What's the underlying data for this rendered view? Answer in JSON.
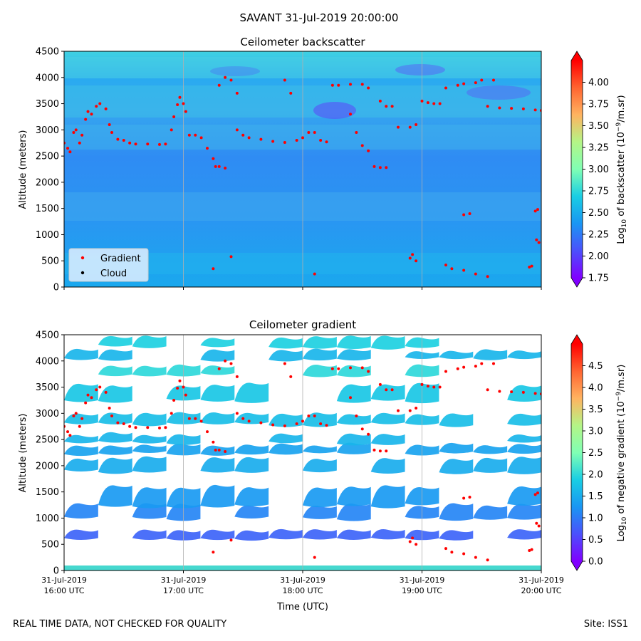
{
  "figure": {
    "suptitle": "SAVANT 31-Jul-2019 20:00:00",
    "footer_left": "REAL TIME DATA, NOT CHECKED FOR QUALITY",
    "footer_right": "Site: ISS1"
  },
  "chart_data": [
    {
      "type": "heatmap",
      "title": "Ceilometer backscatter",
      "xlabel": "",
      "ylabel": "Altitude (meters)",
      "ylim": [
        0,
        4500
      ],
      "yticks": [
        0,
        500,
        1000,
        1500,
        2000,
        2500,
        3000,
        3500,
        4000,
        4500
      ],
      "ytick_labels": [
        "0",
        "500",
        "1000",
        "1500",
        "2000",
        "2500",
        "3000",
        "3500",
        "4000",
        "4500"
      ],
      "x_hours": [
        16,
        17,
        18,
        19,
        20
      ],
      "grid": "vertical",
      "colorbar": {
        "label": "Log10 of backscatter (10^-9/m.sr)",
        "label_parts": [
          "Log",
          "10",
          " of backscatter (10",
          "−9",
          "/m.sr)"
        ],
        "range": [
          1.75,
          4.25
        ],
        "ticks": [
          "1.75",
          "2.00",
          "2.25",
          "2.50",
          "2.75",
          "3.00",
          "3.25",
          "3.50",
          "3.75",
          "4.00"
        ],
        "colormap": "rainbow"
      },
      "legend": {
        "location": "lower-left",
        "entries": [
          {
            "label": "Gradient",
            "color": "#ff0000"
          },
          {
            "label": "Cloud",
            "color": "#000000"
          }
        ]
      },
      "series": [
        {
          "name": "Gradient",
          "color": "#ff0000",
          "points": [
            [
              16.0,
              2750
            ],
            [
              16.03,
              2650
            ],
            [
              16.05,
              2580
            ],
            [
              16.08,
              2950
            ],
            [
              16.1,
              3000
            ],
            [
              16.13,
              2750
            ],
            [
              16.15,
              2900
            ],
            [
              16.18,
              3200
            ],
            [
              16.2,
              3350
            ],
            [
              16.23,
              3300
            ],
            [
              16.27,
              3450
            ],
            [
              16.3,
              3500
            ],
            [
              16.35,
              3400
            ],
            [
              16.38,
              3100
            ],
            [
              16.4,
              2950
            ],
            [
              16.45,
              2820
            ],
            [
              16.5,
              2800
            ],
            [
              16.55,
              2750
            ],
            [
              16.6,
              2730
            ],
            [
              16.7,
              2730
            ],
            [
              16.8,
              2720
            ],
            [
              16.85,
              2730
            ],
            [
              16.9,
              3000
            ],
            [
              16.92,
              3250
            ],
            [
              16.95,
              3480
            ],
            [
              16.97,
              3620
            ],
            [
              17.0,
              3500
            ],
            [
              17.02,
              3350
            ],
            [
              17.05,
              2900
            ],
            [
              17.1,
              2900
            ],
            [
              17.15,
              2850
            ],
            [
              17.2,
              2650
            ],
            [
              17.25,
              2450
            ],
            [
              17.27,
              2300
            ],
            [
              17.3,
              2300
            ],
            [
              17.35,
              2270
            ],
            [
              17.3,
              3850
            ],
            [
              17.35,
              4000
            ],
            [
              17.4,
              3950
            ],
            [
              17.45,
              3700
            ],
            [
              17.45,
              3000
            ],
            [
              17.5,
              2900
            ],
            [
              17.55,
              2850
            ],
            [
              17.65,
              2820
            ],
            [
              17.75,
              2780
            ],
            [
              17.85,
              2760
            ],
            [
              17.95,
              2800
            ],
            [
              17.85,
              3950
            ],
            [
              17.9,
              3700
            ],
            [
              18.0,
              2850
            ],
            [
              18.05,
              2950
            ],
            [
              18.1,
              2950
            ],
            [
              18.15,
              2800
            ],
            [
              18.2,
              2770
            ],
            [
              18.25,
              3850
            ],
            [
              18.3,
              3850
            ],
            [
              18.4,
              3870
            ],
            [
              18.5,
              3870
            ],
            [
              18.55,
              3800
            ],
            [
              18.4,
              3300
            ],
            [
              18.45,
              2950
            ],
            [
              18.5,
              2700
            ],
            [
              18.55,
              2600
            ],
            [
              18.6,
              2300
            ],
            [
              18.65,
              2280
            ],
            [
              18.7,
              2280
            ],
            [
              18.65,
              3550
            ],
            [
              18.7,
              3450
            ],
            [
              18.75,
              3450
            ],
            [
              18.8,
              3050
            ],
            [
              18.9,
              3050
            ],
            [
              18.95,
              3100
            ],
            [
              19.0,
              3550
            ],
            [
              19.05,
              3520
            ],
            [
              19.1,
              3500
            ],
            [
              19.15,
              3500
            ],
            [
              19.2,
              3800
            ],
            [
              19.3,
              3850
            ],
            [
              19.35,
              3880
            ],
            [
              19.45,
              3900
            ],
            [
              19.5,
              3950
            ],
            [
              19.6,
              3950
            ],
            [
              19.55,
              3450
            ],
            [
              19.65,
              3420
            ],
            [
              19.75,
              3410
            ],
            [
              19.85,
              3400
            ],
            [
              19.95,
              3380
            ],
            [
              20.0,
              3370
            ],
            [
              19.35,
              1380
            ],
            [
              19.4,
              1400
            ],
            [
              19.2,
              420
            ],
            [
              19.25,
              350
            ],
            [
              19.35,
              320
            ],
            [
              19.45,
              250
            ],
            [
              19.55,
              200
            ],
            [
              18.9,
              550
            ],
            [
              18.95,
              500
            ],
            [
              18.92,
              620
            ],
            [
              17.4,
              580
            ],
            [
              17.25,
              350
            ],
            [
              18.1,
              250
            ],
            [
              19.95,
              1450
            ],
            [
              19.97,
              1480
            ],
            [
              19.96,
              900
            ],
            [
              19.98,
              850
            ],
            [
              19.9,
              380
            ],
            [
              19.92,
              400
            ]
          ]
        },
        {
          "name": "Cloud",
          "color": "#000000",
          "points": []
        }
      ]
    },
    {
      "type": "heatmap",
      "title": "Ceilometer gradient",
      "xlabel": "Time (UTC)",
      "ylabel": "Altitude (meters)",
      "ylim": [
        0,
        4500
      ],
      "yticks": [
        0,
        500,
        1000,
        1500,
        2000,
        2500,
        3000,
        3500,
        4000,
        4500
      ],
      "ytick_labels": [
        "0",
        "500",
        "1000",
        "1500",
        "2000",
        "2500",
        "3000",
        "3500",
        "4000",
        "4500"
      ],
      "x_hours": [
        16,
        17,
        18,
        19,
        20
      ],
      "xtick_labels": [
        [
          "31-Jul-2019",
          "16:00 UTC"
        ],
        [
          "31-Jul-2019",
          "17:00 UTC"
        ],
        [
          "31-Jul-2019",
          "18:00 UTC"
        ],
        [
          "31-Jul-2019",
          "19:00 UTC"
        ],
        [
          "31-Jul-2019",
          "20:00 UTC"
        ]
      ],
      "grid": "vertical",
      "colorbar": {
        "label": "Log10 of negative gradient (10^-9/m.sr)",
        "label_parts": [
          "Log",
          "10",
          " of negative gradient (10",
          "−9",
          "/m.sr)"
        ],
        "range": [
          0,
          5
        ],
        "ticks": [
          "0.0",
          "0.5",
          "1.0",
          "1.5",
          "2.0",
          "2.5",
          "3.0",
          "3.5",
          "4.0",
          "4.5"
        ],
        "colormap": "rainbow"
      },
      "layers": [
        {
          "bottom": 600,
          "top": 750,
          "value": 0.8
        },
        {
          "bottom": 1000,
          "top": 1250,
          "value": 1.1
        },
        {
          "bottom": 1250,
          "top": 1600,
          "value": 1.3
        },
        {
          "bottom": 1900,
          "top": 2150,
          "value": 1.5
        },
        {
          "bottom": 2250,
          "top": 2400,
          "value": 1.4
        },
        {
          "bottom": 2450,
          "top": 2600,
          "value": 1.6
        },
        {
          "bottom": 2800,
          "top": 3000,
          "value": 1.7
        },
        {
          "bottom": 3250,
          "top": 3550,
          "value": 1.8
        },
        {
          "bottom": 3750,
          "top": 3900,
          "value": 2.0
        },
        {
          "bottom": 4050,
          "top": 4200,
          "value": 1.6
        },
        {
          "bottom": 4280,
          "top": 4450,
          "value": 1.9
        }
      ],
      "series": [
        {
          "name": "Gradient",
          "color": "#ff0000",
          "points": [
            [
              16.0,
              2750
            ],
            [
              16.03,
              2650
            ],
            [
              16.05,
              2580
            ],
            [
              16.08,
              2950
            ],
            [
              16.1,
              3000
            ],
            [
              16.13,
              2750
            ],
            [
              16.15,
              2900
            ],
            [
              16.18,
              3200
            ],
            [
              16.2,
              3350
            ],
            [
              16.23,
              3300
            ],
            [
              16.27,
              3450
            ],
            [
              16.3,
              3500
            ],
            [
              16.35,
              3400
            ],
            [
              16.38,
              3100
            ],
            [
              16.4,
              2950
            ],
            [
              16.45,
              2820
            ],
            [
              16.5,
              2800
            ],
            [
              16.55,
              2750
            ],
            [
              16.6,
              2730
            ],
            [
              16.7,
              2730
            ],
            [
              16.8,
              2720
            ],
            [
              16.85,
              2730
            ],
            [
              16.9,
              3000
            ],
            [
              16.92,
              3250
            ],
            [
              16.95,
              3480
            ],
            [
              16.97,
              3620
            ],
            [
              17.0,
              3500
            ],
            [
              17.02,
              3350
            ],
            [
              17.05,
              2900
            ],
            [
              17.1,
              2900
            ],
            [
              17.15,
              2850
            ],
            [
              17.2,
              2650
            ],
            [
              17.25,
              2450
            ],
            [
              17.27,
              2300
            ],
            [
              17.3,
              2300
            ],
            [
              17.35,
              2270
            ],
            [
              17.3,
              3850
            ],
            [
              17.35,
              4000
            ],
            [
              17.4,
              3950
            ],
            [
              17.45,
              3700
            ],
            [
              17.45,
              3000
            ],
            [
              17.5,
              2900
            ],
            [
              17.55,
              2850
            ],
            [
              17.65,
              2820
            ],
            [
              17.75,
              2780
            ],
            [
              17.85,
              2760
            ],
            [
              17.95,
              2800
            ],
            [
              17.85,
              3950
            ],
            [
              17.9,
              3700
            ],
            [
              18.0,
              2850
            ],
            [
              18.05,
              2950
            ],
            [
              18.1,
              2950
            ],
            [
              18.15,
              2800
            ],
            [
              18.2,
              2770
            ],
            [
              18.25,
              3850
            ],
            [
              18.3,
              3850
            ],
            [
              18.4,
              3870
            ],
            [
              18.5,
              3870
            ],
            [
              18.55,
              3800
            ],
            [
              18.4,
              3300
            ],
            [
              18.45,
              2950
            ],
            [
              18.5,
              2700
            ],
            [
              18.55,
              2600
            ],
            [
              18.6,
              2300
            ],
            [
              18.65,
              2280
            ],
            [
              18.7,
              2280
            ],
            [
              18.65,
              3550
            ],
            [
              18.7,
              3450
            ],
            [
              18.75,
              3450
            ],
            [
              18.8,
              3050
            ],
            [
              18.9,
              3050
            ],
            [
              18.95,
              3100
            ],
            [
              19.0,
              3550
            ],
            [
              19.05,
              3520
            ],
            [
              19.1,
              3500
            ],
            [
              19.15,
              3500
            ],
            [
              19.2,
              3800
            ],
            [
              19.3,
              3850
            ],
            [
              19.35,
              3880
            ],
            [
              19.45,
              3900
            ],
            [
              19.5,
              3950
            ],
            [
              19.6,
              3950
            ],
            [
              19.55,
              3450
            ],
            [
              19.65,
              3420
            ],
            [
              19.75,
              3410
            ],
            [
              19.85,
              3400
            ],
            [
              19.95,
              3380
            ],
            [
              20.0,
              3370
            ],
            [
              19.35,
              1380
            ],
            [
              19.4,
              1400
            ],
            [
              19.2,
              420
            ],
            [
              19.25,
              350
            ],
            [
              19.35,
              320
            ],
            [
              19.45,
              250
            ],
            [
              19.55,
              200
            ],
            [
              18.9,
              550
            ],
            [
              18.95,
              500
            ],
            [
              18.92,
              620
            ],
            [
              17.4,
              580
            ],
            [
              17.25,
              350
            ],
            [
              18.1,
              250
            ],
            [
              19.95,
              1450
            ],
            [
              19.97,
              1480
            ],
            [
              19.96,
              900
            ],
            [
              19.98,
              850
            ],
            [
              19.9,
              380
            ],
            [
              19.92,
              400
            ]
          ]
        }
      ]
    }
  ]
}
